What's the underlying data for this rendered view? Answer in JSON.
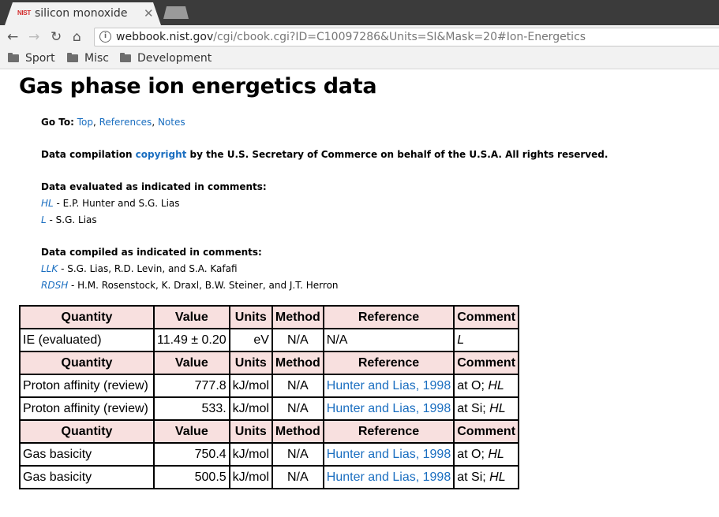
{
  "browser": {
    "tab_title": "silicon monoxide",
    "favicon_text": "NIST",
    "close_glyph": "✕",
    "url_host": "webbook.nist.gov",
    "url_path": "/cgi/cbook.cgi?ID=C10097286&Units=SI&Mask=20#Ion-Energetics",
    "bookmarks": [
      "Sport",
      "Misc",
      "Development"
    ]
  },
  "page": {
    "heading": "Gas phase ion energetics data",
    "goto": {
      "label": "Go To:",
      "links": [
        "Top",
        "References",
        "Notes"
      ]
    },
    "copyright": {
      "before": "Data compilation ",
      "link": "copyright",
      "after": " by the U.S. Secretary of Commerce on behalf of the U.S.A. All rights reserved."
    },
    "evaluated": {
      "heading": "Data evaluated as indicated in comments:",
      "items": [
        {
          "code": "HL",
          "text": " - E.P. Hunter and S.G. Lias"
        },
        {
          "code": "L",
          "text": " - S.G. Lias"
        }
      ]
    },
    "compiled": {
      "heading": "Data compiled as indicated in comments:",
      "items": [
        {
          "code": "LLK",
          "text": " - S.G. Lias, R.D. Levin, and S.A. Kafafi"
        },
        {
          "code": "RDSH",
          "text": " - H.M. Rosenstock, K. Draxl, B.W. Steiner, and J.T. Herron"
        }
      ]
    }
  },
  "table": {
    "headers": [
      "Quantity",
      "Value",
      "Units",
      "Method",
      "Reference",
      "Comment"
    ],
    "sections": [
      {
        "rows": [
          {
            "quantity": "IE (evaluated)",
            "value": "11.49 ± 0.20",
            "units": "eV",
            "method": "N/A",
            "reference": "N/A",
            "ref_link": false,
            "comment_prefix": "",
            "comment_code": "L"
          }
        ]
      },
      {
        "rows": [
          {
            "quantity": "Proton affinity (review)",
            "value": "777.8",
            "units": "kJ/mol",
            "method": "N/A",
            "reference": "Hunter and Lias, 1998",
            "ref_link": true,
            "comment_prefix": "at O; ",
            "comment_code": "HL"
          },
          {
            "quantity": "Proton affinity (review)",
            "value": "533.",
            "units": "kJ/mol",
            "method": "N/A",
            "reference": "Hunter and Lias, 1998",
            "ref_link": true,
            "comment_prefix": "at Si; ",
            "comment_code": "HL"
          }
        ]
      },
      {
        "rows": [
          {
            "quantity": "Gas basicity",
            "value": "750.4",
            "units": "kJ/mol",
            "method": "N/A",
            "reference": "Hunter and Lias, 1998",
            "ref_link": true,
            "comment_prefix": "at O; ",
            "comment_code": "HL"
          },
          {
            "quantity": "Gas basicity",
            "value": "500.5",
            "units": "kJ/mol",
            "method": "N/A",
            "reference": "Hunter and Lias, 1998",
            "ref_link": true,
            "comment_prefix": "at Si; ",
            "comment_code": "HL"
          }
        ]
      }
    ]
  }
}
